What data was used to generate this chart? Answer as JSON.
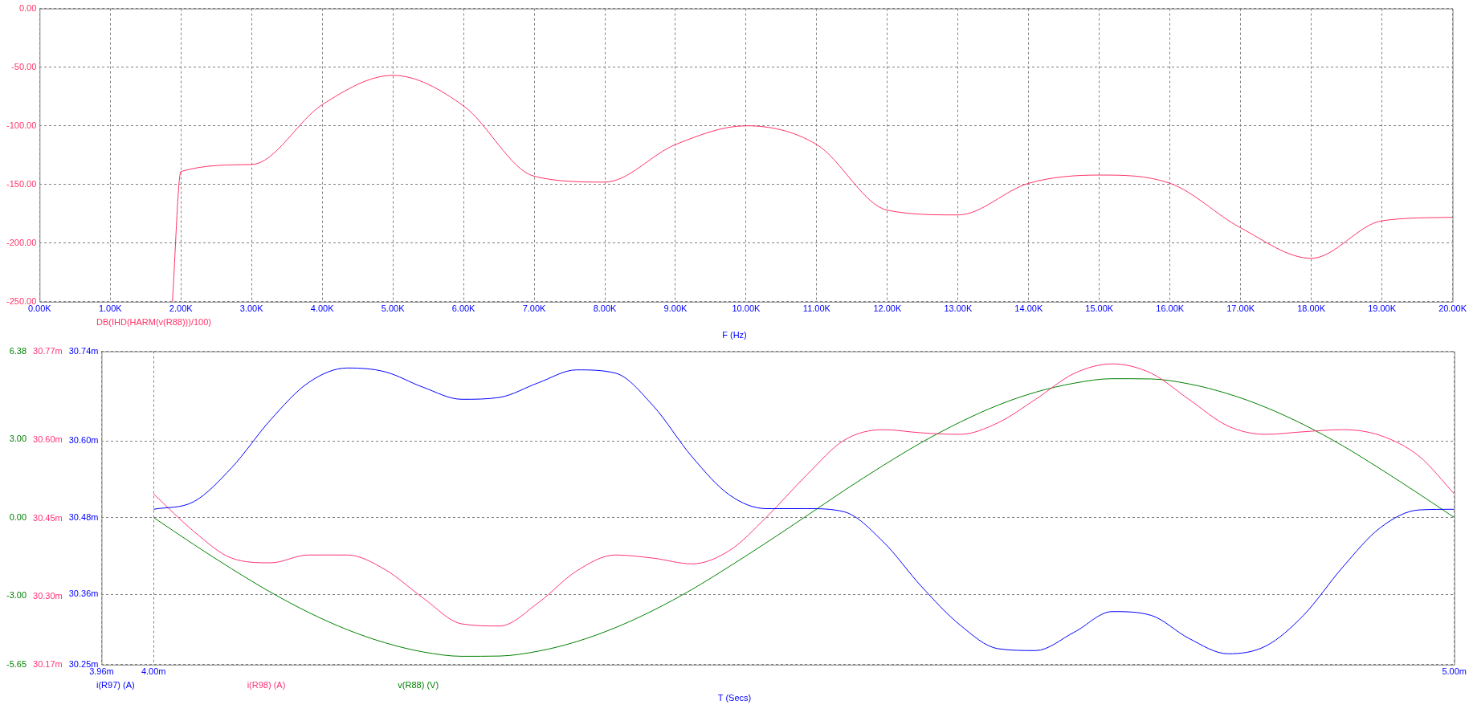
{
  "chart_data": [
    {
      "type": "line",
      "xlabel": "F (Hz)",
      "xlim": [
        0,
        20
      ],
      "xticks": [
        {
          "value": 0,
          "label": "0.00K"
        },
        {
          "value": 1,
          "label": "1.00K"
        },
        {
          "value": 2,
          "label": "2.00K"
        },
        {
          "value": 3,
          "label": "3.00K"
        },
        {
          "value": 4,
          "label": "4.00K"
        },
        {
          "value": 5,
          "label": "5.00K"
        },
        {
          "value": 6,
          "label": "6.00K"
        },
        {
          "value": 7,
          "label": "7.00K"
        },
        {
          "value": 8,
          "label": "8.00K"
        },
        {
          "value": 9,
          "label": "9.00K"
        },
        {
          "value": 10,
          "label": "10.00K"
        },
        {
          "value": 11,
          "label": "11.00K"
        },
        {
          "value": 12,
          "label": "12.00K"
        },
        {
          "value": 13,
          "label": "13.00K"
        },
        {
          "value": 14,
          "label": "14.00K"
        },
        {
          "value": 15,
          "label": "15.00K"
        },
        {
          "value": 16,
          "label": "16.00K"
        },
        {
          "value": 17,
          "label": "17.00K"
        },
        {
          "value": 18,
          "label": "18.00K"
        },
        {
          "value": 19,
          "label": "19.00K"
        },
        {
          "value": 20,
          "label": "20.00K"
        }
      ],
      "ylim": [
        -250,
        0
      ],
      "yticks": [
        {
          "value": 0,
          "label": "0.00"
        },
        {
          "value": -50,
          "label": "-50.00"
        },
        {
          "value": -100,
          "label": "-100.00"
        },
        {
          "value": -150,
          "label": "-150.00"
        },
        {
          "value": -200,
          "label": "-200.00"
        },
        {
          "value": -250,
          "label": "-250.00"
        }
      ],
      "grid": true,
      "marker": "none",
      "line_style": "solid",
      "series": [
        {
          "name": "DB(IHD(HARM(v(R88)))/100)",
          "color": "#ff3366",
          "x": [
            1.88,
            2,
            3,
            4,
            5,
            6,
            7,
            8,
            9,
            10,
            11,
            12,
            13,
            14,
            15,
            16,
            17,
            18,
            19,
            20
          ],
          "values": [
            -250,
            -139,
            -133,
            -82,
            -57,
            -83,
            -143,
            -148,
            -116,
            -100,
            -116,
            -172,
            -176,
            -149,
            -142,
            -149,
            -187,
            -213,
            -181,
            -178
          ]
        }
      ]
    },
    {
      "type": "line",
      "xlabel": "T (Secs)",
      "xlim": [
        3.96,
        5.0
      ],
      "xticks": [
        {
          "value": 3.96,
          "label": "3.96m"
        },
        {
          "value": 4.0,
          "label": "4.00m"
        },
        {
          "value": 5.0,
          "label": "5.00m"
        }
      ],
      "ylim": [
        30.25,
        30.74
      ],
      "yticks": [
        {
          "value": 30.25,
          "label": "30.25m"
        },
        {
          "value": 30.36,
          "label": "30.36m"
        },
        {
          "value": 30.48,
          "label": "30.48m"
        },
        {
          "value": 30.6,
          "label": "30.60m"
        },
        {
          "value": 30.74,
          "label": "30.74m"
        }
      ],
      "y2lim": [
        30.17,
        30.77
      ],
      "y2ticks": [
        {
          "value": 30.17,
          "label": "30.17m"
        },
        {
          "value": 30.3,
          "label": "30.30m"
        },
        {
          "value": 30.45,
          "label": "30.45m"
        },
        {
          "value": 30.6,
          "label": "30.60m"
        },
        {
          "value": 30.77,
          "label": "30.77m"
        }
      ],
      "y3lim": [
        -5.65,
        6.38
      ],
      "y3ticks": [
        {
          "value": -5.65,
          "label": "-5.65"
        },
        {
          "value": -3,
          "label": "-3.00"
        },
        {
          "value": 0,
          "label": "0.00"
        },
        {
          "value": 3,
          "label": "3.00"
        },
        {
          "value": 6.38,
          "label": "6.38"
        }
      ],
      "grid": true,
      "marker": "none",
      "line_style": "solid",
      "x": [
        4.0,
        4.031,
        4.06,
        4.09,
        4.119,
        4.149,
        4.178,
        4.207,
        4.237,
        4.266,
        4.296,
        4.325,
        4.355,
        4.384,
        4.414,
        4.443,
        4.471,
        4.502,
        4.531,
        4.561,
        4.59,
        4.62,
        4.649,
        4.678,
        4.708,
        4.737,
        4.767,
        4.796,
        4.826,
        4.855,
        4.884,
        4.914,
        4.943,
        4.973,
        5.0
      ],
      "series": [
        {
          "name": "i(R97) (A)",
          "color": "#0000ff",
          "axis": "y",
          "values": [
            30.493,
            30.505,
            30.558,
            30.633,
            30.691,
            30.714,
            30.708,
            30.684,
            30.665,
            30.668,
            30.691,
            30.711,
            30.706,
            30.655,
            30.575,
            30.515,
            30.494,
            30.494,
            30.489,
            30.442,
            30.373,
            30.312,
            30.275,
            30.272,
            30.301,
            30.333,
            30.327,
            30.291,
            30.267,
            30.279,
            30.327,
            30.402,
            30.464,
            30.492,
            30.493
          ]
        },
        {
          "name": "i(R98) (A)",
          "color": "#ff3377",
          "axis": "y2",
          "values": [
            30.497,
            30.425,
            30.374,
            30.365,
            30.38,
            30.38,
            30.352,
            30.298,
            30.248,
            30.244,
            30.289,
            30.349,
            30.38,
            30.374,
            30.363,
            30.389,
            30.452,
            30.533,
            30.6,
            30.62,
            30.614,
            30.611,
            30.633,
            30.678,
            30.728,
            30.746,
            30.728,
            30.678,
            30.627,
            30.611,
            30.616,
            30.62,
            30.609,
            30.569,
            30.497
          ]
        },
        {
          "name": "v(R88) (V)",
          "color": "#008000",
          "axis": "y3",
          "values": [
            0,
            -1.04,
            -1.97,
            -2.87,
            -3.64,
            -4.31,
            -4.81,
            -5.16,
            -5.33,
            -5.32,
            -5.13,
            -4.77,
            -4.23,
            -3.57,
            -2.76,
            -1.87,
            -0.97,
            0.06,
            1.04,
            2.0,
            2.87,
            3.66,
            4.31,
            4.81,
            5.16,
            5.33,
            5.32,
            5.13,
            4.75,
            4.23,
            3.57,
            2.76,
            1.87,
            0.9,
            0
          ]
        }
      ]
    }
  ]
}
